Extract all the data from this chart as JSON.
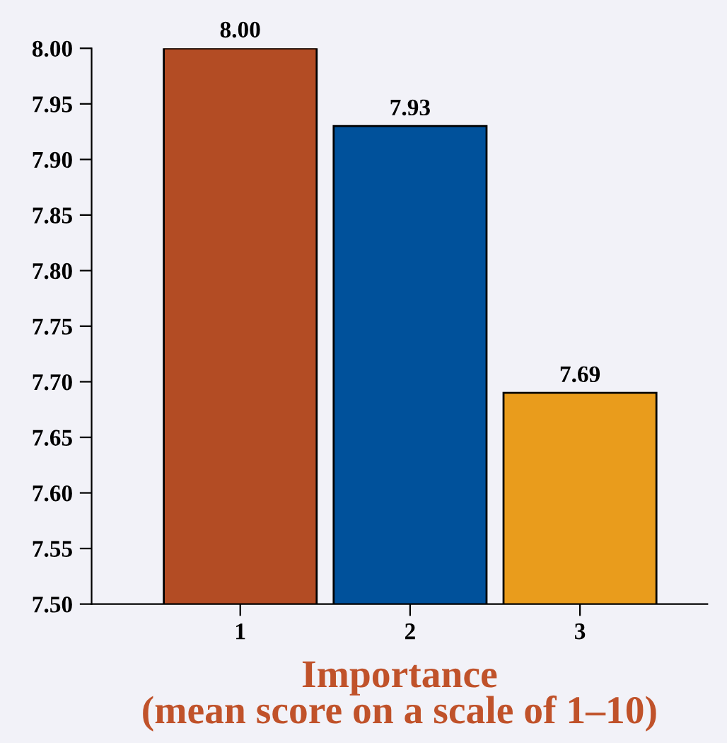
{
  "chart_data": {
    "type": "bar",
    "xlabel": "Importance\n(mean score on a scale of 1–10)",
    "categories": [
      "1",
      "2",
      "3"
    ],
    "values": [
      8.0,
      7.93,
      7.69
    ],
    "colors": [
      "#b34c24",
      "#00519b",
      "#e99c1c"
    ],
    "value_labels": [
      "8.00",
      "7.93",
      "7.69"
    ],
    "ylim": [
      7.5,
      8.0
    ],
    "yticks": [
      {
        "value": 7.5,
        "label": "7.50"
      },
      {
        "value": 7.55,
        "label": "7.55"
      },
      {
        "value": 7.6,
        "label": "7.60"
      },
      {
        "value": 7.65,
        "label": "7.65"
      },
      {
        "value": 7.7,
        "label": "7.70"
      },
      {
        "value": 7.75,
        "label": "7.75"
      },
      {
        "value": 7.8,
        "label": "7.80"
      },
      {
        "value": 7.85,
        "label": "7.85"
      },
      {
        "value": 7.9,
        "label": "7.90"
      },
      {
        "value": 7.95,
        "label": "7.95"
      },
      {
        "value": 8.0,
        "label": "8.00"
      }
    ],
    "grid": false,
    "legend": false
  }
}
